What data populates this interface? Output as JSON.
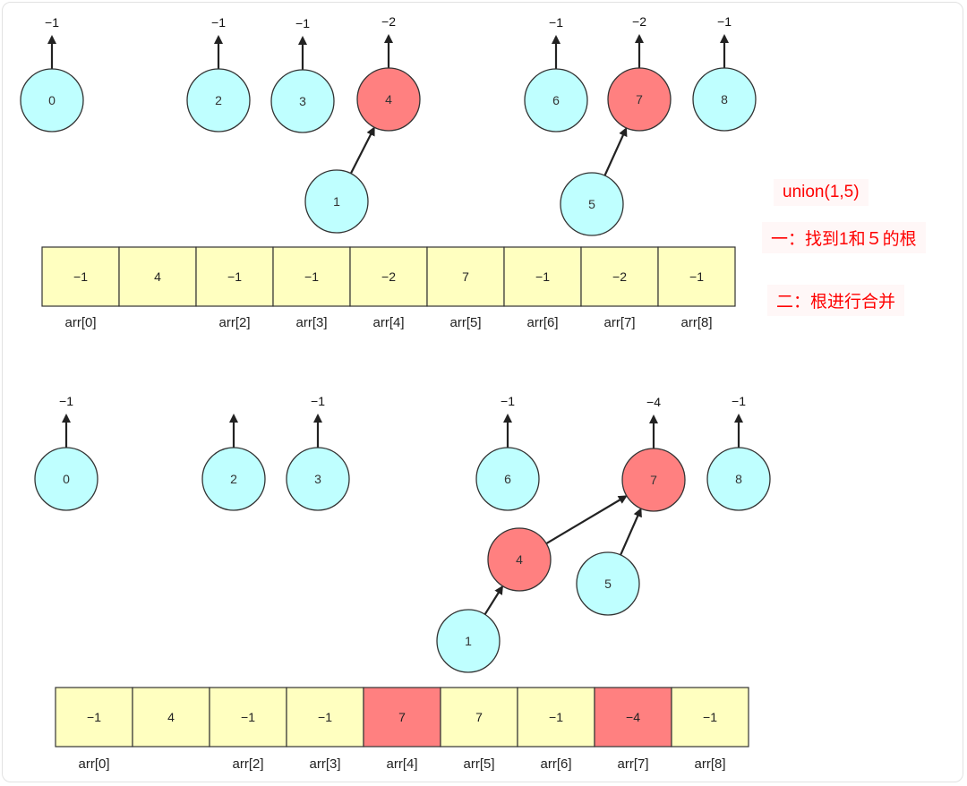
{
  "colors": {
    "node": "#bfffff",
    "root_node": "#ff8080",
    "cell": "#ffffc0",
    "cell_highlight": "#ff8080",
    "stroke": "#333333",
    "note_text": "#ff0000"
  },
  "annotations": {
    "title": "union(1,5)",
    "step1": "一：找到1和５的根",
    "step2": "二：根进行合并"
  },
  "before": {
    "nodes": [
      {
        "id": "0",
        "highlight": false,
        "root_label": "−1"
      },
      {
        "id": "2",
        "highlight": false,
        "root_label": "−1"
      },
      {
        "id": "3",
        "highlight": false,
        "root_label": "−1"
      },
      {
        "id": "4",
        "highlight": true,
        "root_label": "−2"
      },
      {
        "id": "6",
        "highlight": false,
        "root_label": "−1"
      },
      {
        "id": "7",
        "highlight": true,
        "root_label": "−2"
      },
      {
        "id": "8",
        "highlight": false,
        "root_label": "−1"
      },
      {
        "id": "1",
        "highlight": false,
        "root_label": null
      },
      {
        "id": "5",
        "highlight": false,
        "root_label": null
      }
    ],
    "edges": [
      [
        "1",
        "4"
      ],
      [
        "5",
        "7"
      ]
    ],
    "array": {
      "values": [
        "−1",
        "4",
        "−1",
        "−1",
        "−2",
        "7",
        "−1",
        "−2",
        "−1"
      ],
      "highlighted": [],
      "labels": [
        "arr[0]",
        "",
        "arr[2]",
        "arr[3]",
        "arr[4]",
        "arr[5]",
        "arr[6]",
        "arr[7]",
        "arr[8]"
      ]
    }
  },
  "after": {
    "nodes": [
      {
        "id": "0",
        "highlight": false,
        "root_label": "−1"
      },
      {
        "id": "2",
        "highlight": false,
        "root_label": ""
      },
      {
        "id": "3",
        "highlight": false,
        "root_label": "−1"
      },
      {
        "id": "6",
        "highlight": false,
        "root_label": "−1"
      },
      {
        "id": "7",
        "highlight": true,
        "root_label": "−4"
      },
      {
        "id": "8",
        "highlight": false,
        "root_label": "−1"
      },
      {
        "id": "4",
        "highlight": true,
        "root_label": null
      },
      {
        "id": "5",
        "highlight": false,
        "root_label": null
      },
      {
        "id": "1",
        "highlight": false,
        "root_label": null
      }
    ],
    "edges": [
      [
        "4",
        "7"
      ],
      [
        "5",
        "7"
      ],
      [
        "1",
        "4"
      ]
    ],
    "array": {
      "values": [
        "−1",
        "4",
        "−1",
        "−1",
        "7",
        "7",
        "−1",
        "−4",
        "−1"
      ],
      "highlighted": [
        4,
        7
      ],
      "labels": [
        "arr[0]",
        "",
        "arr[2]",
        "arr[3]",
        "arr[4]",
        "arr[5]",
        "arr[6]",
        "arr[7]",
        "arr[8]"
      ]
    }
  }
}
